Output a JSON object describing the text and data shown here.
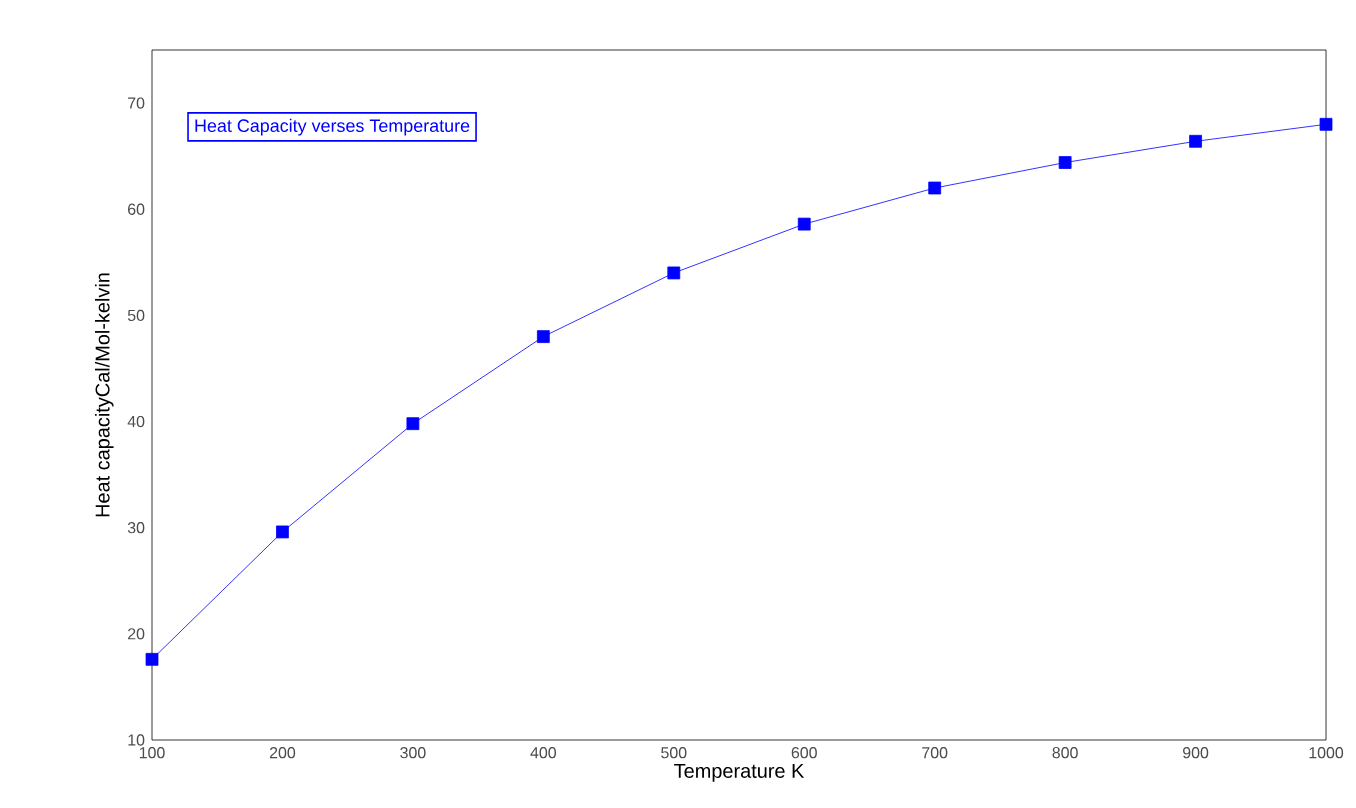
{
  "chart_data": {
    "type": "line",
    "xlabel": "Temperature K",
    "ylabel": "Heat capacityCal/Mol-kelvin",
    "x": [
      100,
      200,
      300,
      400,
      500,
      600,
      700,
      800,
      900,
      1000
    ],
    "series": [
      {
        "name": "Heat Capacity verses Temperature",
        "color": "#0000ff",
        "values": [
          17.6,
          29.6,
          39.8,
          48.0,
          54.0,
          58.6,
          62.0,
          64.4,
          66.4,
          68.0
        ]
      }
    ],
    "xlim": [
      100,
      1000
    ],
    "ylim": [
      10,
      75
    ],
    "xticks": [
      100,
      200,
      300,
      400,
      500,
      600,
      700,
      800,
      900,
      1000
    ],
    "yticks": [
      10,
      20,
      30,
      40,
      50,
      60,
      70
    ],
    "marker": "square",
    "line_style": "solid",
    "legend": "top left",
    "grid": false
  }
}
